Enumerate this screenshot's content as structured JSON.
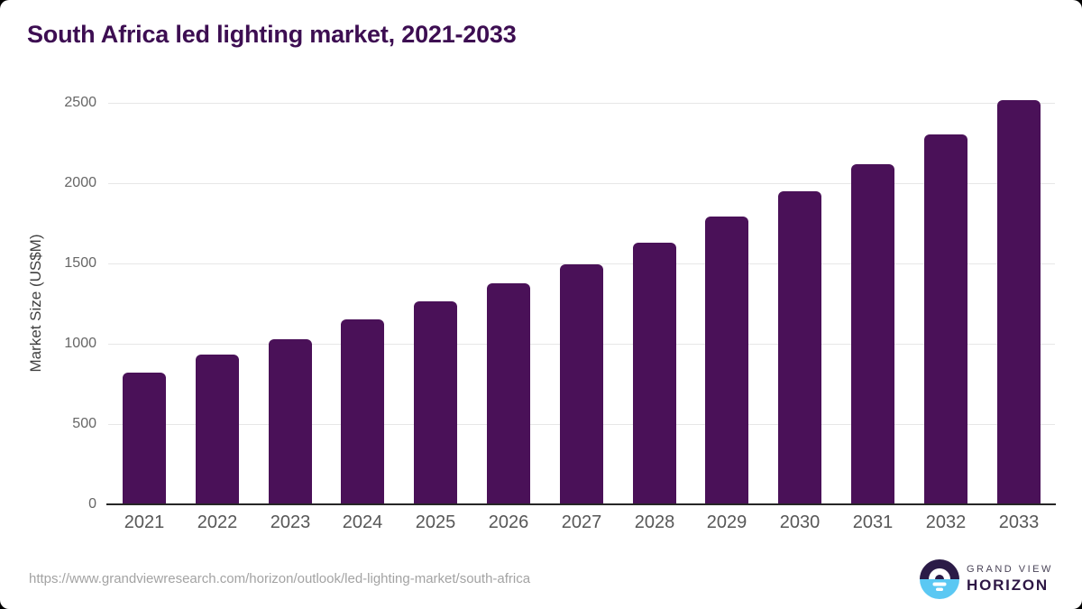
{
  "title": "South Africa led lighting market, 2021-2033",
  "footer": {
    "source_url": "https://www.grandviewresearch.com/horizon/outlook/led-lighting-market/south-africa",
    "brand_line1": "GRAND VIEW",
    "brand_line2": "HORIZON"
  },
  "colors": {
    "bar": "#4a1158",
    "title": "#3d0e52",
    "axis": "#262626",
    "gridline": "#e7e7e7",
    "y_tick": "#666666",
    "x_tick": "#575757",
    "url_text": "#a3a3a3",
    "logo_top": "#2b1b47",
    "logo_bottom": "#5bc8f3"
  },
  "chart_data": {
    "type": "bar",
    "title": "South Africa led lighting market, 2021-2033",
    "categories": [
      "2021",
      "2022",
      "2023",
      "2024",
      "2025",
      "2026",
      "2027",
      "2028",
      "2029",
      "2030",
      "2031",
      "2032",
      "2033"
    ],
    "values": [
      820,
      930,
      1030,
      1150,
      1265,
      1375,
      1495,
      1630,
      1790,
      1950,
      2120,
      2305,
      2515
    ],
    "xlabel": "",
    "ylabel": "Market Size (US$M)",
    "ylim": [
      0,
      2580
    ],
    "yticks": [
      0,
      500,
      1000,
      1500,
      2000,
      2500
    ],
    "grid": true,
    "legend": false,
    "bar_color": "#4a1158"
  }
}
